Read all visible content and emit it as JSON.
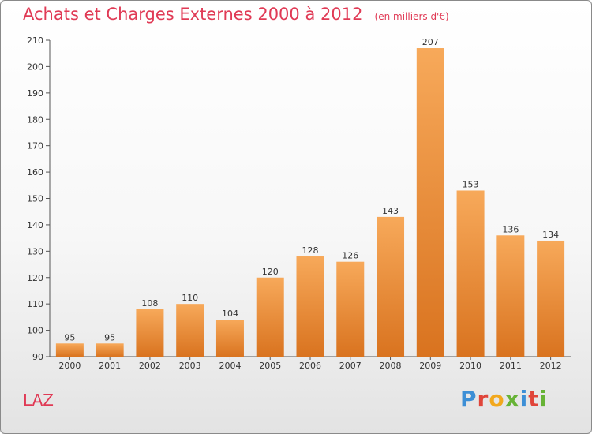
{
  "title": "Achats et Charges Externes 2000 à 2012",
  "subtitle": "(en milliers d'€)",
  "commune": "LAZ",
  "logo": {
    "letters": [
      "P",
      "r",
      "o",
      "x",
      "i",
      "t",
      "i"
    ],
    "colors": [
      "#3d8fd6",
      "#e0453a",
      "#f2a81d",
      "#67b336",
      "#3d8fd6",
      "#e0453a",
      "#67b336"
    ]
  },
  "colors": {
    "accent": "#e03a55",
    "bar_light": "#f7a95a",
    "bar_dark": "#d9731f"
  },
  "chart_data": {
    "type": "bar",
    "categories": [
      "2000",
      "2001",
      "2002",
      "2003",
      "2004",
      "2005",
      "2006",
      "2007",
      "2008",
      "2009",
      "2010",
      "2011",
      "2012"
    ],
    "values": [
      95,
      95,
      108,
      110,
      104,
      120,
      128,
      126,
      143,
      207,
      153,
      136,
      134
    ],
    "title": "Achats et Charges Externes 2000 à 2012",
    "ylim": [
      90,
      210
    ],
    "yticks": [
      90,
      100,
      110,
      120,
      130,
      140,
      150,
      160,
      170,
      180,
      190,
      200,
      210
    ],
    "grid": false,
    "legend": "none"
  }
}
